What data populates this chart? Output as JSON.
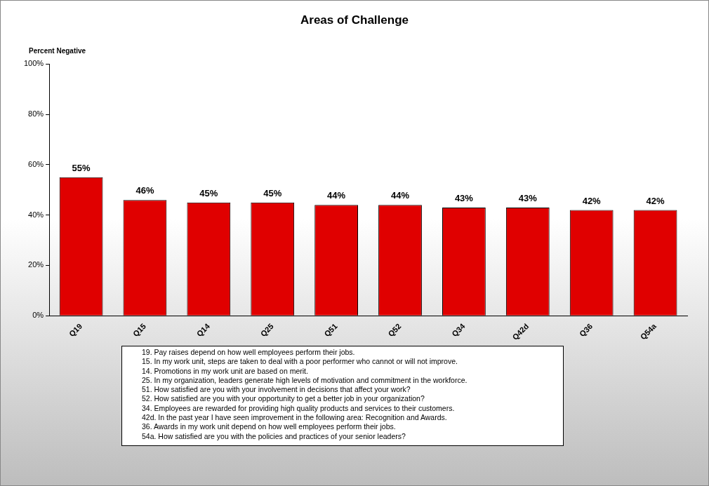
{
  "chart_data": {
    "type": "bar",
    "title": "Areas of Challenge",
    "ylabel": "Percent Negative",
    "categories": [
      "Q19",
      "Q15",
      "Q14",
      "Q25",
      "Q51",
      "Q52",
      "Q34",
      "Q42d",
      "Q36",
      "Q54a"
    ],
    "values": [
      55,
      46,
      45,
      45,
      44,
      44,
      43,
      43,
      42,
      42
    ],
    "value_labels": [
      "55%",
      "46%",
      "45%",
      "45%",
      "44%",
      "44%",
      "43%",
      "43%",
      "42%",
      "42%"
    ],
    "color": "#e00000",
    "ylim": [
      0,
      100
    ],
    "yticks": [
      {
        "value": 0,
        "label": "0%"
      },
      {
        "value": 20,
        "label": "20%"
      },
      {
        "value": 40,
        "label": "40%"
      },
      {
        "value": 60,
        "label": "60%"
      },
      {
        "value": 80,
        "label": "80%"
      },
      {
        "value": 100,
        "label": "100%"
      }
    ],
    "grid": false,
    "legend": false,
    "annotations": [
      "19. Pay raises depend on how well employees perform their jobs.",
      "15. In my work unit, steps are taken to deal with a poor performer who cannot or will not improve.",
      "14. Promotions in my work unit are based on merit.",
      "25. In my organization, leaders generate high levels of motivation and commitment in the workforce.",
      "51. How satisfied are you with your involvement in decisions that affect your work?",
      "52. How satisfied are you with your opportunity to get a better job in your organization?",
      "34. Employees are rewarded for providing high quality products and services to their customers.",
      "42d. In the past year I have seen improvement in the following area: Recognition and Awards.",
      "36. Awards in my work unit depend on how well employees perform their jobs.",
      "54a. How satisfied are you with the policies and practices of your senior leaders?"
    ]
  }
}
